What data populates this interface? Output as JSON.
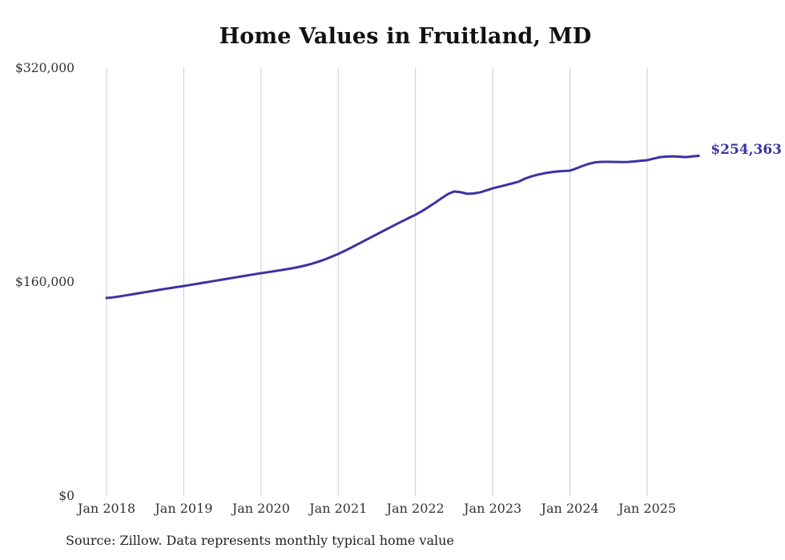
{
  "chart_data": {
    "type": "line",
    "title": "Home Values in Fruitland, MD",
    "xlabel": "",
    "ylabel": "",
    "ylim": [
      0,
      320000
    ],
    "grid": {
      "vertical": true,
      "horizontal": false
    },
    "legend": "none",
    "x_tick_labels": [
      "Jan 2018",
      "Jan 2019",
      "Jan 2020",
      "Jan 2021",
      "Jan 2022",
      "Jan 2023",
      "Jan 2024",
      "Jan 2025"
    ],
    "y_ticks": [
      {
        "value": 0,
        "label": "$0"
      },
      {
        "value": 160000,
        "label": "$160,000"
      },
      {
        "value": 320000,
        "label": "$320,000"
      }
    ],
    "end_label": "$254,363",
    "end_value": 254363,
    "source_note": "Source: Zillow. Data represents monthly typical home value",
    "series": [
      {
        "name": "Monthly typical home value",
        "start_month": "2018-01",
        "end_month": "2025-09",
        "values_by_year": [
          {
            "year": 2018,
            "values": [
              148000,
              148500,
              149200,
              150000,
              150800,
              151600,
              152400,
              153200,
              154000,
              154800,
              155500,
              156300
            ]
          },
          {
            "year": 2019,
            "values": [
              157000,
              157800,
              158600,
              159400,
              160200,
              161000,
              161800,
              162600,
              163400,
              164200,
              165000,
              165800
            ]
          },
          {
            "year": 2020,
            "values": [
              166600,
              167300,
              168000,
              168800,
              169600,
              170400,
              171400,
              172500,
              173800,
              175300,
              177000,
              179000
            ]
          },
          {
            "year": 2021,
            "values": [
              181000,
              183300,
              185700,
              188200,
              190700,
              193200,
              195700,
              198200,
              200700,
              203200,
              205600,
              208000
            ]
          },
          {
            "year": 2022,
            "values": [
              210300,
              213000,
              216000,
              219200,
              222500,
              225700,
              227700,
              227200,
              226000,
              226200,
              227000,
              228500
            ]
          },
          {
            "year": 2023,
            "values": [
              230100,
              231300,
              232500,
              233700,
              235000,
              237300,
              239000,
              240300,
              241300,
              242100,
              242700,
              243000
            ]
          },
          {
            "year": 2024,
            "values": [
              243300,
              245000,
              246900,
              248500,
              249600,
              249900,
              249900,
              249800,
              249700,
              249800,
              250200,
              250700
            ]
          },
          {
            "year": 2025,
            "values": [
              251100,
              252300,
              253400,
              253800,
              254000,
              253700,
              253400,
              253900,
              254363
            ]
          }
        ]
      }
    ],
    "colors": {
      "line": "#3a34a3",
      "grid": "#cbcbcb",
      "title_text": "#111111",
      "axis_text": "#333333",
      "end_label_text": "#3a34a3",
      "source_text": "#222222",
      "background": "#ffffff"
    }
  }
}
